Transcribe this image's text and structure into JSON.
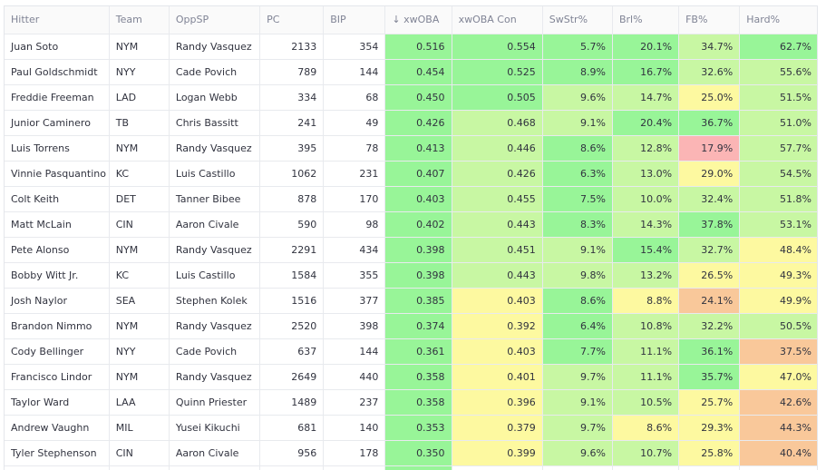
{
  "table": {
    "columns": [
      {
        "key": "hitter",
        "label": "Hitter"
      },
      {
        "key": "team",
        "label": "Team"
      },
      {
        "key": "oppsp",
        "label": "OppSP"
      },
      {
        "key": "pc",
        "label": "PC"
      },
      {
        "key": "bip",
        "label": "BIP"
      },
      {
        "key": "xwoba",
        "label": "↓ xwOBA"
      },
      {
        "key": "xwoba_con",
        "label": "xwOBA Con"
      },
      {
        "key": "swstr",
        "label": "SwStr%"
      },
      {
        "key": "brl",
        "label": "Brl%"
      },
      {
        "key": "fb",
        "label": "FB%"
      },
      {
        "key": "hard",
        "label": "Hard%"
      }
    ],
    "palette": {
      "strong_green": "#98f598",
      "light_green": "#c8f7a3",
      "yellow": "#fdf9a0",
      "orange": "#f9c89a",
      "pink": "#fbb5b5",
      "white": "#ffffff"
    },
    "rows": [
      {
        "hitter": "Juan Soto",
        "team": "NYM",
        "oppsp": "Randy Vasquez",
        "pc": "2133",
        "bip": "354",
        "xwoba": "0.516",
        "xwoba_con": "0.554",
        "swstr": "5.7%",
        "brl": "20.1%",
        "fb": "34.7%",
        "hard": "62.7%",
        "colors": {
          "xwoba": "#98f598",
          "xwoba_con": "#98f598",
          "swstr": "#98f598",
          "brl": "#98f598",
          "fb": "#c8f7a3",
          "hard": "#98f598"
        }
      },
      {
        "hitter": "Paul Goldschmidt",
        "team": "NYY",
        "oppsp": "Cade Povich",
        "pc": "789",
        "bip": "144",
        "xwoba": "0.454",
        "xwoba_con": "0.525",
        "swstr": "8.9%",
        "brl": "16.7%",
        "fb": "32.6%",
        "hard": "55.6%",
        "colors": {
          "xwoba": "#98f598",
          "xwoba_con": "#98f598",
          "swstr": "#98f598",
          "brl": "#98f598",
          "fb": "#c8f7a3",
          "hard": "#c8f7a3"
        }
      },
      {
        "hitter": "Freddie Freeman",
        "team": "LAD",
        "oppsp": "Logan Webb",
        "pc": "334",
        "bip": "68",
        "xwoba": "0.450",
        "xwoba_con": "0.505",
        "swstr": "9.6%",
        "brl": "14.7%",
        "fb": "25.0%",
        "hard": "51.5%",
        "colors": {
          "xwoba": "#98f598",
          "xwoba_con": "#98f598",
          "swstr": "#c8f7a3",
          "brl": "#c8f7a3",
          "fb": "#fdf9a0",
          "hard": "#c8f7a3"
        }
      },
      {
        "hitter": "Junior Caminero",
        "team": "TB",
        "oppsp": "Chris Bassitt",
        "pc": "241",
        "bip": "49",
        "xwoba": "0.426",
        "xwoba_con": "0.468",
        "swstr": "9.1%",
        "brl": "20.4%",
        "fb": "36.7%",
        "hard": "51.0%",
        "colors": {
          "xwoba": "#98f598",
          "xwoba_con": "#c8f7a3",
          "swstr": "#c8f7a3",
          "brl": "#98f598",
          "fb": "#98f598",
          "hard": "#c8f7a3"
        }
      },
      {
        "hitter": "Luis Torrens",
        "team": "NYM",
        "oppsp": "Randy Vasquez",
        "pc": "395",
        "bip": "78",
        "xwoba": "0.413",
        "xwoba_con": "0.446",
        "swstr": "8.6%",
        "brl": "12.8%",
        "fb": "17.9%",
        "hard": "57.7%",
        "colors": {
          "xwoba": "#98f598",
          "xwoba_con": "#c8f7a3",
          "swstr": "#98f598",
          "brl": "#c8f7a3",
          "fb": "#fbb5b5",
          "hard": "#c8f7a3"
        }
      },
      {
        "hitter": "Vinnie Pasquantino",
        "team": "KC",
        "oppsp": "Luis Castillo",
        "pc": "1062",
        "bip": "231",
        "xwoba": "0.407",
        "xwoba_con": "0.426",
        "swstr": "6.3%",
        "brl": "13.0%",
        "fb": "29.0%",
        "hard": "54.5%",
        "colors": {
          "xwoba": "#98f598",
          "xwoba_con": "#c8f7a3",
          "swstr": "#98f598",
          "brl": "#c8f7a3",
          "fb": "#fdf9a0",
          "hard": "#c8f7a3"
        }
      },
      {
        "hitter": "Colt Keith",
        "team": "DET",
        "oppsp": "Tanner Bibee",
        "pc": "878",
        "bip": "170",
        "xwoba": "0.403",
        "xwoba_con": "0.455",
        "swstr": "7.5%",
        "brl": "10.0%",
        "fb": "32.4%",
        "hard": "51.8%",
        "colors": {
          "xwoba": "#98f598",
          "xwoba_con": "#c8f7a3",
          "swstr": "#98f598",
          "brl": "#c8f7a3",
          "fb": "#c8f7a3",
          "hard": "#c8f7a3"
        }
      },
      {
        "hitter": "Matt McLain",
        "team": "CIN",
        "oppsp": "Aaron Civale",
        "pc": "590",
        "bip": "98",
        "xwoba": "0.402",
        "xwoba_con": "0.443",
        "swstr": "8.3%",
        "brl": "14.3%",
        "fb": "37.8%",
        "hard": "53.1%",
        "colors": {
          "xwoba": "#98f598",
          "xwoba_con": "#c8f7a3",
          "swstr": "#98f598",
          "brl": "#c8f7a3",
          "fb": "#98f598",
          "hard": "#c8f7a3"
        }
      },
      {
        "hitter": "Pete Alonso",
        "team": "NYM",
        "oppsp": "Randy Vasquez",
        "pc": "2291",
        "bip": "434",
        "xwoba": "0.398",
        "xwoba_con": "0.451",
        "swstr": "9.1%",
        "brl": "15.4%",
        "fb": "32.7%",
        "hard": "48.4%",
        "colors": {
          "xwoba": "#98f598",
          "xwoba_con": "#c8f7a3",
          "swstr": "#c8f7a3",
          "brl": "#98f598",
          "fb": "#c8f7a3",
          "hard": "#fdf9a0"
        }
      },
      {
        "hitter": "Bobby Witt Jr.",
        "team": "KC",
        "oppsp": "Luis Castillo",
        "pc": "1584",
        "bip": "355",
        "xwoba": "0.398",
        "xwoba_con": "0.443",
        "swstr": "9.8%",
        "brl": "13.2%",
        "fb": "26.5%",
        "hard": "49.3%",
        "colors": {
          "xwoba": "#98f598",
          "xwoba_con": "#c8f7a3",
          "swstr": "#c8f7a3",
          "brl": "#c8f7a3",
          "fb": "#fdf9a0",
          "hard": "#fdf9a0"
        }
      },
      {
        "hitter": "Josh Naylor",
        "team": "SEA",
        "oppsp": "Stephen Kolek",
        "pc": "1516",
        "bip": "377",
        "xwoba": "0.385",
        "xwoba_con": "0.403",
        "swstr": "8.6%",
        "brl": "8.8%",
        "fb": "24.1%",
        "hard": "49.9%",
        "colors": {
          "xwoba": "#98f598",
          "xwoba_con": "#fdf9a0",
          "swstr": "#98f598",
          "brl": "#fdf9a0",
          "fb": "#f9c89a",
          "hard": "#fdf9a0"
        }
      },
      {
        "hitter": "Brandon Nimmo",
        "team": "NYM",
        "oppsp": "Randy Vasquez",
        "pc": "2520",
        "bip": "398",
        "xwoba": "0.374",
        "xwoba_con": "0.392",
        "swstr": "6.4%",
        "brl": "10.8%",
        "fb": "32.2%",
        "hard": "50.5%",
        "colors": {
          "xwoba": "#98f598",
          "xwoba_con": "#fdf9a0",
          "swstr": "#98f598",
          "brl": "#c8f7a3",
          "fb": "#c8f7a3",
          "hard": "#c8f7a3"
        }
      },
      {
        "hitter": "Cody Bellinger",
        "team": "NYY",
        "oppsp": "Cade Povich",
        "pc": "637",
        "bip": "144",
        "xwoba": "0.361",
        "xwoba_con": "0.403",
        "swstr": "7.7%",
        "brl": "11.1%",
        "fb": "36.1%",
        "hard": "37.5%",
        "colors": {
          "xwoba": "#98f598",
          "xwoba_con": "#fdf9a0",
          "swstr": "#98f598",
          "brl": "#c8f7a3",
          "fb": "#98f598",
          "hard": "#f9c89a"
        }
      },
      {
        "hitter": "Francisco Lindor",
        "team": "NYM",
        "oppsp": "Randy Vasquez",
        "pc": "2649",
        "bip": "440",
        "xwoba": "0.358",
        "xwoba_con": "0.401",
        "swstr": "9.7%",
        "brl": "11.1%",
        "fb": "35.7%",
        "hard": "47.0%",
        "colors": {
          "xwoba": "#98f598",
          "xwoba_con": "#fdf9a0",
          "swstr": "#c8f7a3",
          "brl": "#c8f7a3",
          "fb": "#98f598",
          "hard": "#fdf9a0"
        }
      },
      {
        "hitter": "Taylor Ward",
        "team": "LAA",
        "oppsp": "Quinn Priester",
        "pc": "1489",
        "bip": "237",
        "xwoba": "0.358",
        "xwoba_con": "0.396",
        "swstr": "9.1%",
        "brl": "10.5%",
        "fb": "25.7%",
        "hard": "42.6%",
        "colors": {
          "xwoba": "#98f598",
          "xwoba_con": "#fdf9a0",
          "swstr": "#c8f7a3",
          "brl": "#c8f7a3",
          "fb": "#fdf9a0",
          "hard": "#f9c89a"
        }
      },
      {
        "hitter": "Andrew Vaughn",
        "team": "MIL",
        "oppsp": "Yusei Kikuchi",
        "pc": "681",
        "bip": "140",
        "xwoba": "0.353",
        "xwoba_con": "0.379",
        "swstr": "9.7%",
        "brl": "8.6%",
        "fb": "29.3%",
        "hard": "44.3%",
        "colors": {
          "xwoba": "#98f598",
          "xwoba_con": "#fdf9a0",
          "swstr": "#c8f7a3",
          "brl": "#fdf9a0",
          "fb": "#fdf9a0",
          "hard": "#f9c89a"
        }
      },
      {
        "hitter": "Tyler Stephenson",
        "team": "CIN",
        "oppsp": "Aaron Civale",
        "pc": "956",
        "bip": "178",
        "xwoba": "0.350",
        "xwoba_con": "0.399",
        "swstr": "9.6%",
        "brl": "10.7%",
        "fb": "25.8%",
        "hard": "40.4%",
        "colors": {
          "xwoba": "#98f598",
          "xwoba_con": "#fdf9a0",
          "swstr": "#c8f7a3",
          "brl": "#c8f7a3",
          "fb": "#fdf9a0",
          "hard": "#f9c89a"
        }
      }
    ]
  }
}
